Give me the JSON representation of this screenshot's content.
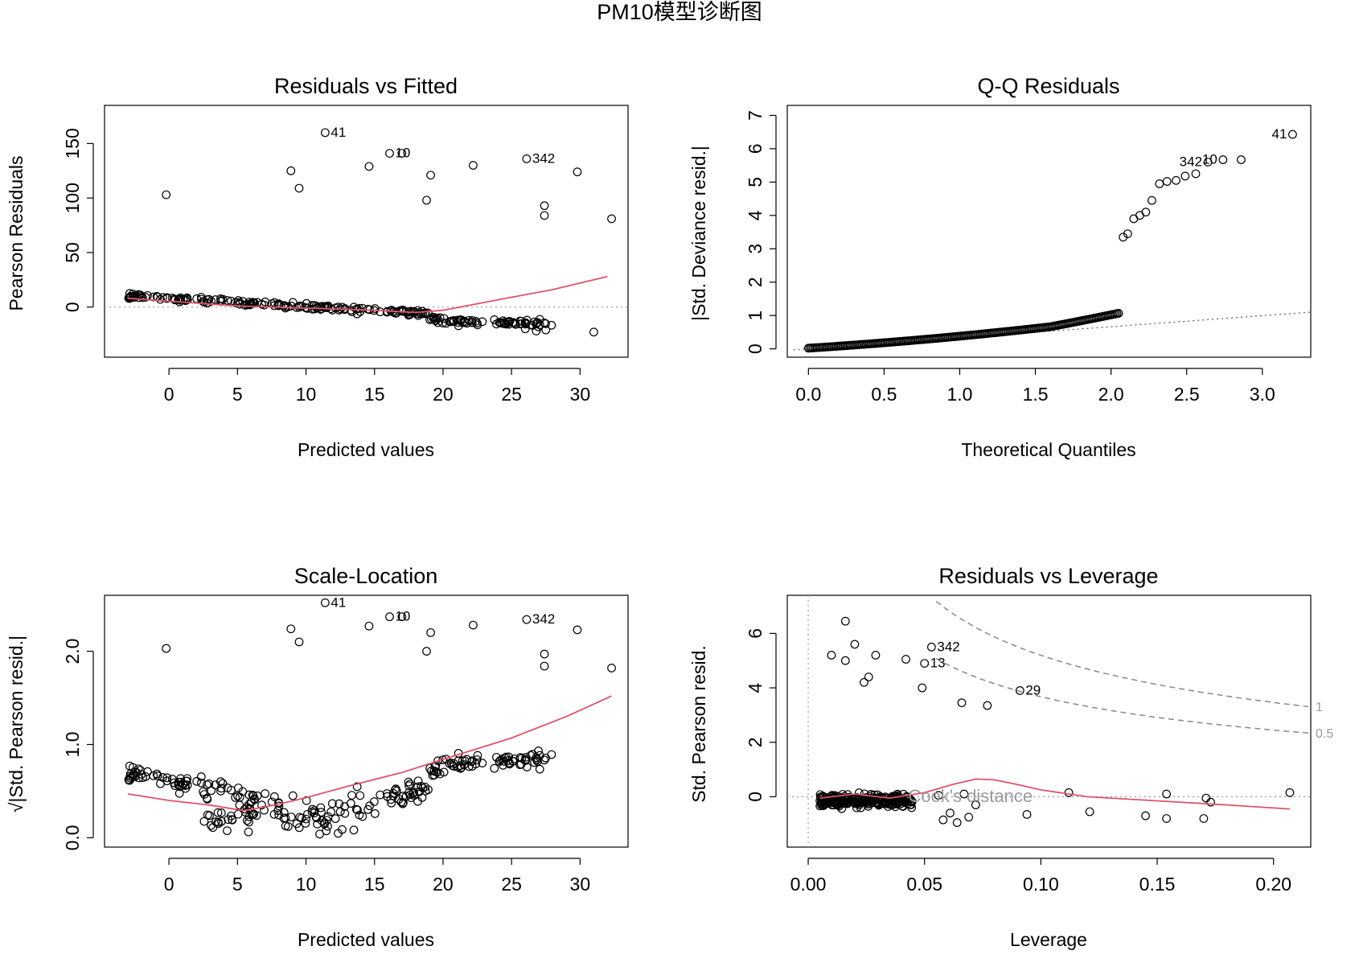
{
  "figure_title": "PM10模型诊断图",
  "colors": {
    "smooth": "#DF536B",
    "reference": "#999999",
    "points": "#000000"
  },
  "chart_data": [
    {
      "type": "scatter",
      "title": "Residuals vs Fitted",
      "xlabel": "Predicted values",
      "ylabel": "Pearson Residuals",
      "xlim": [
        -4.7,
        33.5
      ],
      "ylim": [
        -46,
        185
      ],
      "xticks": [
        0,
        5,
        10,
        15,
        20,
        25,
        30
      ],
      "yticks": [
        0,
        50,
        100,
        150
      ],
      "reference_line": {
        "y": 0,
        "style": "dotted"
      },
      "outliers": [
        [
          -0.2,
          103
        ],
        [
          8.9,
          125
        ],
        [
          9.5,
          109
        ],
        [
          11.4,
          160
        ],
        [
          14.6,
          129
        ],
        [
          16.1,
          141
        ],
        [
          17.0,
          141
        ],
        [
          18.8,
          98
        ],
        [
          19.1,
          121
        ],
        [
          22.2,
          130
        ],
        [
          26.1,
          136
        ],
        [
          27.4,
          93
        ],
        [
          27.4,
          84
        ],
        [
          29.8,
          124
        ],
        [
          32.3,
          81
        ]
      ],
      "point_labels": [
        {
          "x": 11.4,
          "y": 160,
          "text": "41"
        },
        {
          "x": 16.1,
          "y": 141,
          "text": "10"
        },
        {
          "x": 26.1,
          "y": 136,
          "text": "342"
        }
      ],
      "smooth": [
        [
          -3,
          8
        ],
        [
          5,
          1
        ],
        [
          10,
          -1
        ],
        [
          15,
          -3
        ],
        [
          18,
          -5
        ],
        [
          20,
          -3
        ],
        [
          25,
          9
        ],
        [
          28,
          16
        ],
        [
          32,
          28
        ]
      ]
    },
    {
      "type": "scatter",
      "title": "Q-Q Residuals",
      "xlabel": "Theoretical Quantiles",
      "ylabel": "|Std. Deviance resid.|",
      "xlim": [
        -0.14,
        3.32
      ],
      "ylim": [
        -0.25,
        7.3
      ],
      "xticks": [
        0.0,
        0.5,
        1.0,
        1.5,
        2.0,
        2.5,
        3.0
      ],
      "yticks": [
        0,
        1,
        2,
        3,
        4,
        5,
        6,
        7
      ],
      "outliers": [
        [
          2.08,
          3.35
        ],
        [
          2.11,
          3.45
        ],
        [
          2.15,
          3.9
        ],
        [
          2.19,
          4.0
        ],
        [
          2.23,
          4.1
        ],
        [
          2.27,
          4.45
        ],
        [
          2.32,
          4.95
        ],
        [
          2.37,
          5.02
        ],
        [
          2.43,
          5.05
        ],
        [
          2.49,
          5.18
        ],
        [
          2.56,
          5.25
        ],
        [
          2.64,
          5.6
        ],
        [
          2.74,
          5.67
        ],
        [
          2.86,
          5.67
        ],
        [
          3.2,
          6.43
        ]
      ],
      "point_labels": [
        {
          "x": 2.64,
          "y": 5.6,
          "text": "342"
        },
        {
          "x": 2.74,
          "y": 5.67,
          "text": "10"
        },
        {
          "x": 3.2,
          "y": 6.43,
          "text": "41"
        }
      ],
      "reference_line": [
        [
          -0.1,
          -0.03
        ],
        [
          3.32,
          1.1
        ]
      ]
    },
    {
      "type": "scatter",
      "title": "Scale-Location",
      "xlabel": "Predicted values",
      "ylabel": "√|Std. Pearson resid.|",
      "xlim": [
        -4.7,
        33.5
      ],
      "ylim": [
        -0.1,
        2.6
      ],
      "xticks": [
        0,
        5,
        10,
        15,
        20,
        25,
        30
      ],
      "yticks": [
        0.0,
        1.0,
        2.0
      ],
      "outliers": [
        [
          -0.2,
          2.03
        ],
        [
          8.9,
          2.24
        ],
        [
          9.5,
          2.1
        ],
        [
          11.4,
          2.52
        ],
        [
          14.6,
          2.27
        ],
        [
          16.1,
          2.37
        ],
        [
          17.0,
          2.37
        ],
        [
          18.8,
          2.0
        ],
        [
          19.1,
          2.2
        ],
        [
          22.2,
          2.28
        ],
        [
          26.1,
          2.34
        ],
        [
          27.4,
          1.97
        ],
        [
          27.4,
          1.84
        ],
        [
          29.8,
          2.23
        ],
        [
          32.3,
          1.82
        ]
      ],
      "point_labels": [
        {
          "x": 11.4,
          "y": 2.52,
          "text": "41"
        },
        {
          "x": 16.1,
          "y": 2.37,
          "text": "10"
        },
        {
          "x": 26.1,
          "y": 2.34,
          "text": "342"
        }
      ],
      "smooth": [
        [
          -3,
          0.47
        ],
        [
          0,
          0.4
        ],
        [
          3,
          0.35
        ],
        [
          5.5,
          0.29
        ],
        [
          8,
          0.36
        ],
        [
          10,
          0.43
        ],
        [
          13,
          0.55
        ],
        [
          17,
          0.7
        ],
        [
          20,
          0.84
        ],
        [
          25,
          1.07
        ],
        [
          29,
          1.3
        ],
        [
          32.3,
          1.52
        ]
      ]
    },
    {
      "type": "scatter",
      "title": "Residuals vs Leverage",
      "xlabel": "Leverage",
      "ylabel": "Std. Pearson resid.",
      "xlim": [
        -0.009,
        0.216
      ],
      "ylim": [
        -1.85,
        7.4
      ],
      "xticks": [
        0.0,
        0.05,
        0.1,
        0.15,
        0.2
      ],
      "xtick_labels": [
        "0.00",
        "0.05",
        "0.10",
        "0.15",
        "0.20"
      ],
      "yticks": [
        0,
        2,
        4,
        6
      ],
      "outliers": [
        [
          0.01,
          5.2
        ],
        [
          0.016,
          6.45
        ],
        [
          0.016,
          5.0
        ],
        [
          0.02,
          5.6
        ],
        [
          0.024,
          4.2
        ],
        [
          0.026,
          4.4
        ],
        [
          0.029,
          5.2
        ],
        [
          0.042,
          5.05
        ],
        [
          0.049,
          4.0
        ],
        [
          0.05,
          4.9
        ],
        [
          0.053,
          5.5
        ],
        [
          0.066,
          3.45
        ],
        [
          0.077,
          3.35
        ],
        [
          0.091,
          3.9
        ]
      ],
      "point_labels": [
        {
          "x": 0.053,
          "y": 5.5,
          "text": "342"
        },
        {
          "x": 0.05,
          "y": 4.9,
          "text": "13"
        },
        {
          "x": 0.091,
          "y": 3.9,
          "text": "29"
        }
      ],
      "lowleverage_points": [
        [
          0.094,
          -0.65
        ],
        [
          0.112,
          0.15
        ],
        [
          0.121,
          -0.55
        ],
        [
          0.145,
          -0.7
        ],
        [
          0.154,
          0.1
        ],
        [
          0.154,
          -0.8
        ],
        [
          0.17,
          -0.8
        ],
        [
          0.171,
          -0.05
        ],
        [
          0.173,
          -0.2
        ],
        [
          0.207,
          0.15
        ],
        [
          0.064,
          -0.95
        ],
        [
          0.067,
          0.1
        ],
        [
          0.069,
          -0.75
        ],
        [
          0.072,
          -0.3
        ],
        [
          0.058,
          -0.85
        ],
        [
          0.061,
          -0.6
        ],
        [
          0.056,
          0.05
        ]
      ],
      "smooth": [
        [
          0.005,
          -0.05
        ],
        [
          0.02,
          0.1
        ],
        [
          0.035,
          -0.05
        ],
        [
          0.05,
          0.15
        ],
        [
          0.062,
          0.45
        ],
        [
          0.072,
          0.65
        ],
        [
          0.08,
          0.62
        ],
        [
          0.09,
          0.45
        ],
        [
          0.1,
          0.25
        ],
        [
          0.12,
          0.0
        ],
        [
          0.15,
          -0.15
        ],
        [
          0.18,
          -0.3
        ],
        [
          0.207,
          -0.45
        ]
      ],
      "cooks_contours": [
        {
          "label": "0.5",
          "level": 0.5
        },
        {
          "label": "1",
          "level": 1
        }
      ],
      "cooks_label": "Cook's distance"
    }
  ]
}
